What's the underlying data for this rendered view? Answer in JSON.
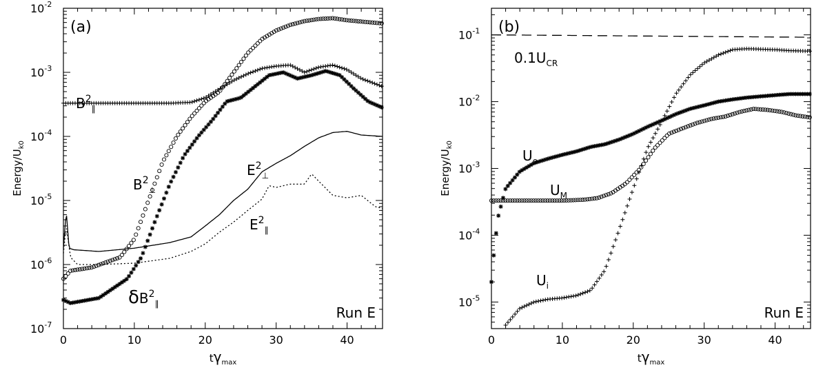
{
  "chart_data": [
    {
      "type": "scatter",
      "panel_label": "(a)",
      "run_label": "Run E",
      "xlabel": "tγmax",
      "ylabel": "Energy/Uk0",
      "xlim": [
        0,
        45
      ],
      "ylim": [
        1e-07,
        0.01
      ],
      "yscale": "log",
      "x_ticks": [
        0,
        10,
        20,
        30,
        40
      ],
      "y_ticks": [
        "10^-7",
        "10^-6",
        "10^-5",
        "10^-4",
        "10^-3",
        "10^-2"
      ],
      "series": [
        {
          "name": "B²∥",
          "marker": "plus",
          "style": "markers",
          "x": [
            0,
            5,
            10,
            15,
            18,
            20,
            22,
            24,
            26,
            28,
            30,
            32,
            34,
            36,
            38,
            40,
            42,
            45
          ],
          "y": [
            0.00033,
            0.00033,
            0.00033,
            0.00033,
            0.00034,
            0.0004,
            0.00055,
            0.00075,
            0.00095,
            0.00115,
            0.00125,
            0.0013,
            0.001,
            0.0012,
            0.0013,
            0.0011,
            0.0008,
            0.0006
          ]
        },
        {
          "name": "B²⊥",
          "marker": "circle",
          "style": "markers",
          "x": [
            0,
            1,
            4,
            8,
            10,
            12,
            14,
            16,
            18,
            20,
            22,
            24,
            26,
            28,
            30,
            32,
            34,
            36,
            38,
            40,
            42,
            45
          ],
          "y": [
            6e-07,
            8e-07,
            9e-07,
            1.3e-06,
            2.5e-06,
            1e-05,
            4e-05,
            0.0001,
            0.0002,
            0.00035,
            0.0005,
            0.001,
            0.002,
            0.0033,
            0.0045,
            0.0055,
            0.0063,
            0.0068,
            0.007,
            0.0065,
            0.0062,
            0.0058
          ]
        },
        {
          "name": "δB²∥",
          "marker": "asterisk",
          "style": "markers",
          "x": [
            0,
            1,
            5,
            9,
            11,
            13,
            15,
            17,
            19,
            21,
            23,
            25,
            27,
            29,
            31,
            33,
            35,
            37,
            39,
            41,
            43,
            45
          ],
          "y": [
            2.8e-07,
            2.5e-07,
            3e-07,
            6e-07,
            1.3e-06,
            5e-06,
            1.8e-05,
            5e-05,
            0.0001,
            0.00018,
            0.00035,
            0.0004,
            0.0006,
            0.0009,
            0.001,
            0.0008,
            0.0009,
            0.00105,
            0.0009,
            0.00055,
            0.00035,
            0.00028
          ]
        },
        {
          "name": "E²⊥",
          "marker": "none",
          "style": "solid",
          "x": [
            0,
            0.4,
            0.8,
            1.5,
            5,
            10,
            15,
            18,
            20,
            22,
            24,
            26,
            28,
            30,
            32,
            34,
            36,
            38,
            40,
            42,
            45
          ],
          "y": [
            1.8e-06,
            6.8e-06,
            1.8e-06,
            1.7e-06,
            1.6e-06,
            1.8e-06,
            2.2e-06,
            2.7e-06,
            4e-06,
            6e-06,
            1e-05,
            1.5e-05,
            2.8e-05,
            3.8e-05,
            5e-05,
            7e-05,
            9.5e-05,
            0.000115,
            0.00012,
            0.000105,
            0.0001
          ]
        },
        {
          "name": "E²∥",
          "marker": "none",
          "style": "dotted",
          "x": [
            0,
            0.4,
            1,
            2,
            5,
            10,
            15,
            18,
            20,
            22,
            24,
            26,
            28,
            29,
            30,
            32,
            34,
            35,
            36,
            38,
            40,
            42,
            44,
            45
          ],
          "y": [
            1.5e-06,
            4e-06,
            1.3e-06,
            1e-06,
            1e-06,
            1.05e-06,
            1.25e-06,
            1.6e-06,
            2.1e-06,
            3.2e-06,
            4.6e-06,
            7e-06,
            1.05e-05,
            1.7e-05,
            1.6e-05,
            1.8e-05,
            1.8e-05,
            2.6e-05,
            2e-05,
            1.2e-05,
            1.1e-05,
            1.2e-05,
            8e-06,
            7.5e-06
          ]
        }
      ]
    },
    {
      "type": "scatter",
      "panel_label": "(b)",
      "run_label": "Run E",
      "xlabel": "tγmax",
      "ylabel": "Energy/Uk0",
      "xlim": [
        0,
        45
      ],
      "ylim": [
        4e-06,
        0.25
      ],
      "yscale": "log",
      "x_ticks": [
        0,
        10,
        20,
        30,
        40
      ],
      "y_ticks": [
        "10^-5",
        "10^-4",
        "10^-3",
        "10^-2",
        "10^-1"
      ],
      "series": [
        {
          "name": "0.1UCR",
          "marker": "none",
          "style": "dashed",
          "x": [
            0,
            45
          ],
          "y": [
            0.1,
            0.092
          ]
        },
        {
          "name": "Ui",
          "marker": "plus",
          "style": "markers",
          "x": [
            2,
            4,
            6,
            8,
            10,
            12,
            14,
            16,
            18,
            20,
            22,
            24,
            26,
            28,
            30,
            32,
            34,
            36,
            38,
            40,
            42,
            45
          ],
          "y": [
            4.5e-06,
            8e-06,
            1e-05,
            1.1e-05,
            1.15e-05,
            1.25e-05,
            1.5e-05,
            3e-05,
            0.00012,
            0.0005,
            0.002,
            0.005,
            0.013,
            0.025,
            0.038,
            0.05,
            0.06,
            0.062,
            0.061,
            0.06,
            0.058,
            0.057
          ]
        },
        {
          "name": "Ue",
          "marker": "asterisk",
          "style": "markers",
          "x": [
            0,
            0.5,
            1,
            2,
            4,
            6,
            8,
            10,
            12,
            14,
            16,
            18,
            20,
            22,
            24,
            26,
            28,
            30,
            32,
            34,
            36,
            38,
            40,
            42,
            45
          ],
          "y": [
            2e-05,
            8e-05,
            0.0002,
            0.0005,
            0.0009,
            0.0012,
            0.0014,
            0.0016,
            0.0018,
            0.0021,
            0.0023,
            0.0027,
            0.0033,
            0.0042,
            0.0052,
            0.0065,
            0.0078,
            0.0088,
            0.01,
            0.0108,
            0.0115,
            0.012,
            0.0125,
            0.013,
            0.013
          ]
        },
        {
          "name": "UM",
          "marker": "circle",
          "style": "markers",
          "x": [
            0,
            2,
            5,
            10,
            13,
            15,
            17,
            19,
            21,
            23,
            25,
            27,
            29,
            31,
            33,
            35,
            37,
            39,
            41,
            43,
            45
          ],
          "y": [
            0.00033,
            0.00033,
            0.00033,
            0.00033,
            0.00034,
            0.00036,
            0.00043,
            0.0006,
            0.001,
            0.002,
            0.0033,
            0.004,
            0.0048,
            0.0055,
            0.006,
            0.007,
            0.0078,
            0.0075,
            0.007,
            0.0062,
            0.0058
          ]
        }
      ]
    }
  ]
}
